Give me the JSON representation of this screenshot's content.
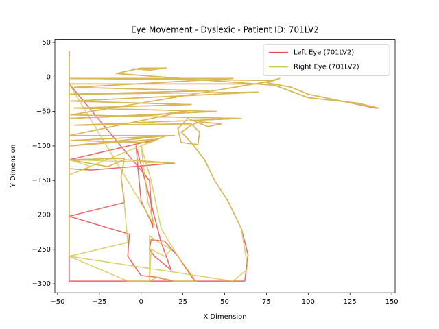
{
  "chart_data": {
    "type": "line",
    "title": "Eye Movement - Dyslexic - Patient ID: 701LV2",
    "x_label": "X Dimension",
    "y_label": "Y Dimension",
    "xlim": [
      -51.6,
      152
    ],
    "ylim": [
      -313,
      54.4
    ],
    "xticks": [
      {
        "value": -50,
        "label": "−50"
      },
      {
        "value": -25,
        "label": "−25"
      },
      0,
      25,
      50,
      75,
      100,
      125,
      150
    ],
    "yticks": [
      {
        "value": -300,
        "label": "−300"
      },
      {
        "value": -250,
        "label": "−250"
      },
      {
        "value": -200,
        "label": "−200"
      },
      {
        "value": -150,
        "label": "−150"
      },
      {
        "value": -100,
        "label": "−100"
      },
      {
        "value": -50,
        "label": "−50"
      },
      0,
      50
    ],
    "legend": "upper right",
    "series": [
      {
        "name": "Left Eye (701LV2)",
        "color": "#e84a4a",
        "x": [
          -43,
          -43,
          62,
          64,
          60,
          52,
          44,
          38,
          30,
          24,
          30,
          35,
          48,
          40,
          28,
          22,
          24,
          34,
          35,
          30,
          -40,
          60,
          -42,
          80,
          -43,
          55,
          -40,
          40,
          -43,
          70,
          -42,
          30,
          -40,
          45,
          -43,
          10,
          30,
          -43,
          20,
          -42,
          5,
          15,
          -43,
          10,
          -43,
          -20,
          -10,
          20,
          -30,
          -43,
          -43,
          -10,
          -12,
          -10,
          -43,
          -7,
          -8,
          0,
          8,
          20,
          32,
          22,
          14,
          6,
          5,
          8,
          18,
          12,
          -3,
          -2,
          0,
          6,
          7,
          5,
          -43,
          70,
          83,
          75,
          90,
          100,
          120,
          140,
          142,
          130,
          100,
          80,
          -15,
          0,
          15,
          5,
          -5
        ],
        "values": [
          37,
          -296,
          -296,
          -258,
          -220,
          -180,
          -150,
          -120,
          -95,
          -80,
          -70,
          -65,
          -68,
          -72,
          -60,
          -75,
          -95,
          -98,
          -80,
          -68,
          -70,
          -60,
          -55,
          -5,
          -2,
          -2,
          -15,
          -20,
          -25,
          -22,
          -35,
          -40,
          -45,
          -50,
          -60,
          -55,
          -48,
          -85,
          -85,
          -92,
          -95,
          -85,
          -100,
          -90,
          -120,
          -130,
          -120,
          -125,
          -135,
          -133,
          -120,
          -118,
          -145,
          -182,
          -202,
          -228,
          -260,
          -288,
          -290,
          -296,
          -296,
          -260,
          -238,
          -236,
          -250,
          -260,
          -280,
          -240,
          -100,
          -130,
          -180,
          -210,
          -218,
          -150,
          -10,
          -10,
          -2,
          -8,
          -15,
          -25,
          -35,
          -45,
          -45,
          -38,
          -30,
          -12,
          5,
          13,
          13,
          10,
          12
        ]
      },
      {
        "name": "Right Eye (701LV2)",
        "color": "#d4c84a",
        "x": [
          -43,
          -43,
          55,
          64,
          62,
          60,
          52,
          44,
          38,
          30,
          24,
          30,
          35,
          48,
          40,
          28,
          22,
          24,
          34,
          35,
          30,
          -40,
          60,
          -42,
          80,
          -43,
          55,
          -40,
          40,
          -43,
          70,
          -42,
          30,
          -40,
          45,
          -43,
          10,
          30,
          -43,
          20,
          -42,
          5,
          15,
          -43,
          10,
          -43,
          -30,
          -43,
          -20,
          -10,
          20,
          -43,
          -10,
          -12,
          -10,
          -8,
          -43,
          -8,
          -3,
          5,
          5,
          8,
          18,
          14,
          6,
          5,
          10,
          20,
          33,
          22,
          12,
          6,
          0,
          4,
          8,
          -43,
          70,
          83,
          75,
          90,
          100,
          120,
          142,
          130,
          100,
          80,
          -15,
          0,
          15,
          5,
          -5
        ],
        "values": [
          30,
          -260,
          -296,
          -278,
          -250,
          -220,
          -180,
          -150,
          -120,
          -95,
          -80,
          -70,
          -65,
          -68,
          -72,
          -60,
          -75,
          -95,
          -98,
          -80,
          -68,
          -70,
          -60,
          -55,
          -5,
          -2,
          -2,
          -15,
          -20,
          -25,
          -22,
          -35,
          -40,
          -45,
          -50,
          -60,
          -55,
          -48,
          -85,
          -85,
          -92,
          -95,
          -85,
          -100,
          -90,
          -142,
          -130,
          -120,
          -130,
          -120,
          -125,
          -120,
          -118,
          -145,
          -185,
          -240,
          -260,
          -296,
          -296,
          -296,
          -230,
          -236,
          -250,
          -260,
          -250,
          -296,
          -290,
          -296,
          -296,
          -260,
          -220,
          -150,
          -100,
          -180,
          -215,
          -10,
          -10,
          -2,
          -8,
          -15,
          -25,
          -35,
          -45,
          -38,
          -30,
          -12,
          5,
          13,
          13,
          10,
          12
        ]
      }
    ]
  }
}
